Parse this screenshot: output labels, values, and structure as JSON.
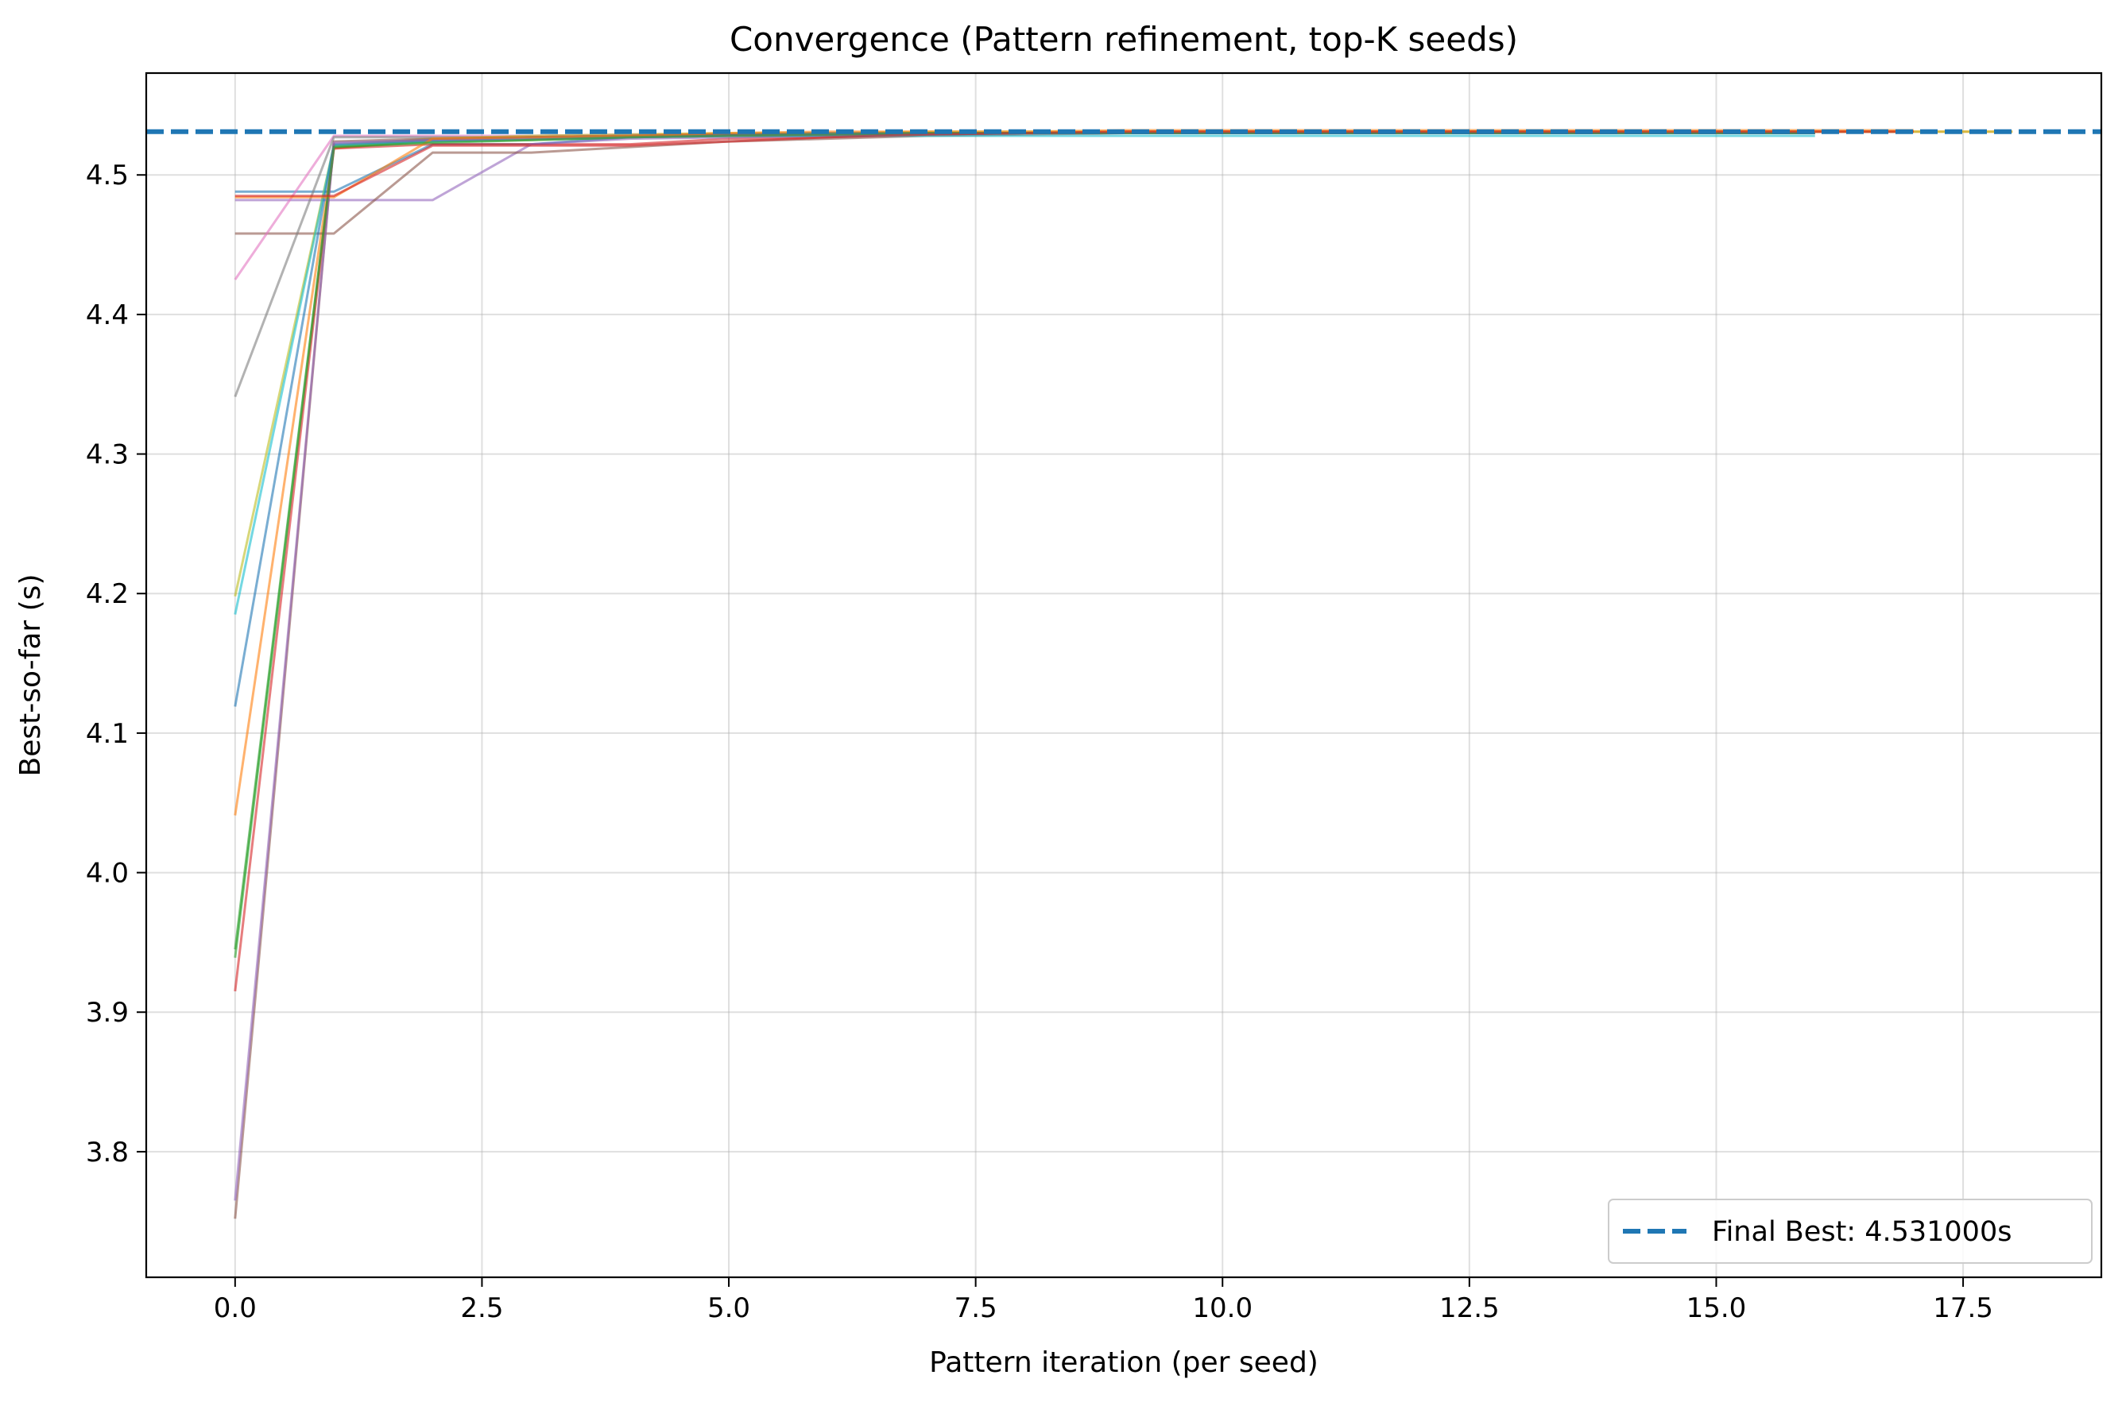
{
  "chart_data": {
    "type": "line",
    "title": "Convergence (Pattern refinement, top-K seeds)",
    "xlabel": "Pattern iteration (per seed)",
    "ylabel": "Best-so-far (s)",
    "xlim": [
      -0.9,
      18.9
    ],
    "ylim": [
      3.71,
      4.573
    ],
    "xticks": [
      0.0,
      2.5,
      5.0,
      7.5,
      10.0,
      12.5,
      15.0,
      17.5
    ],
    "xtick_labels": [
      "0.0",
      "2.5",
      "5.0",
      "7.5",
      "10.0",
      "12.5",
      "15.0",
      "17.5"
    ],
    "yticks": [
      3.8,
      3.9,
      4.0,
      4.1,
      4.2,
      4.3,
      4.4,
      4.5
    ],
    "ytick_labels": [
      "3.8",
      "3.9",
      "4.0",
      "4.1",
      "4.2",
      "4.3",
      "4.4",
      "4.5"
    ],
    "grid": true,
    "legend_placement": "lower-right",
    "reference_line": {
      "label": "Final Best: 4.531000s",
      "y": 4.531,
      "color": "#1f77b4",
      "style": "dashed"
    },
    "series": [
      {
        "color": "#1f77b4",
        "x": [
          0,
          1,
          2,
          3,
          4,
          5,
          6,
          7,
          8,
          9,
          10,
          11,
          12,
          13,
          14,
          15,
          16,
          17
        ],
        "y": [
          4.488,
          4.488,
          4.522,
          4.522,
          4.527,
          4.528,
          4.528,
          4.529,
          4.53,
          4.531,
          4.531,
          4.531,
          4.531,
          4.531,
          4.531,
          4.531,
          4.531,
          4.531
        ]
      },
      {
        "color": "#ff7f0e",
        "x": [
          0,
          1,
          2,
          3,
          4,
          5,
          6,
          7,
          8,
          9,
          10,
          11,
          12,
          13,
          14,
          15,
          16,
          17,
          18
        ],
        "y": [
          4.041,
          4.519,
          4.525,
          4.526,
          4.527,
          4.529,
          4.529,
          4.53,
          4.53,
          4.531,
          4.531,
          4.531,
          4.531,
          4.531,
          4.531,
          4.531,
          4.531,
          4.531,
          4.531
        ]
      },
      {
        "color": "#2ca02c",
        "x": [
          0,
          1,
          2,
          3,
          4,
          5,
          6,
          7,
          8,
          9,
          10,
          11,
          12,
          13,
          14,
          15,
          16
        ],
        "y": [
          3.939,
          4.52,
          4.524,
          4.525,
          4.527,
          4.528,
          4.529,
          4.53,
          4.53,
          4.53,
          4.531,
          4.531,
          4.531,
          4.531,
          4.531,
          4.531,
          4.531
        ]
      },
      {
        "color": "#d62728",
        "x": [
          0,
          1,
          2,
          3,
          4,
          5,
          6,
          7,
          8,
          9,
          10,
          11,
          12,
          13,
          14,
          15,
          16,
          17
        ],
        "y": [
          3.915,
          4.519,
          4.522,
          4.522,
          4.522,
          4.526,
          4.527,
          4.529,
          4.53,
          4.531,
          4.531,
          4.531,
          4.531,
          4.531,
          4.531,
          4.531,
          4.531,
          4.531
        ]
      },
      {
        "color": "#9467bd",
        "x": [
          0,
          1,
          2,
          3,
          4,
          5,
          6,
          7,
          8,
          9,
          10,
          11,
          12,
          13,
          14,
          15,
          16
        ],
        "y": [
          4.482,
          4.482,
          4.482,
          4.522,
          4.526,
          4.527,
          4.528,
          4.529,
          4.53,
          4.53,
          4.53,
          4.53,
          4.53,
          4.53,
          4.53,
          4.53,
          4.53
        ]
      },
      {
        "color": "#8c564b",
        "x": [
          0,
          1,
          2,
          3,
          4,
          5,
          6,
          7,
          8,
          9,
          10,
          11,
          12,
          13,
          14,
          15,
          16
        ],
        "y": [
          4.458,
          4.458,
          4.516,
          4.516,
          4.52,
          4.524,
          4.526,
          4.528,
          4.529,
          4.53,
          4.53,
          4.53,
          4.53,
          4.53,
          4.53,
          4.53,
          4.53
        ]
      },
      {
        "color": "#e377c2",
        "x": [
          0,
          1,
          2,
          3,
          4,
          5,
          6,
          7,
          8,
          9,
          10,
          11,
          12,
          13,
          14,
          15,
          16
        ],
        "y": [
          4.425,
          4.528,
          4.528,
          4.528,
          4.529,
          4.529,
          4.53,
          4.53,
          4.53,
          4.53,
          4.53,
          4.53,
          4.53,
          4.53,
          4.53,
          4.53,
          4.53
        ]
      },
      {
        "color": "#7f7f7f",
        "x": [
          0,
          1,
          2,
          3,
          4,
          5,
          6,
          7,
          8,
          9,
          10,
          11,
          12,
          13,
          14,
          15,
          16
        ],
        "y": [
          4.341,
          4.527,
          4.527,
          4.527,
          4.528,
          4.529,
          4.529,
          4.53,
          4.53,
          4.53,
          4.53,
          4.53,
          4.53,
          4.53,
          4.53,
          4.53,
          4.53
        ]
      },
      {
        "color": "#bcbd22",
        "x": [
          0,
          1,
          2,
          3,
          4,
          5,
          6,
          7,
          8,
          9,
          10,
          11,
          12,
          13,
          14,
          15,
          16,
          17,
          18
        ],
        "y": [
          4.198,
          4.521,
          4.526,
          4.528,
          4.529,
          4.53,
          4.53,
          4.531,
          4.531,
          4.531,
          4.531,
          4.531,
          4.531,
          4.531,
          4.531,
          4.531,
          4.531,
          4.531,
          4.531
        ]
      },
      {
        "color": "#17becf",
        "x": [
          0,
          1,
          2,
          3,
          4,
          5,
          6,
          7,
          8,
          9,
          10,
          11,
          12,
          13,
          14,
          15,
          16
        ],
        "y": [
          4.185,
          4.521,
          4.524,
          4.526,
          4.527,
          4.528,
          4.528,
          4.528,
          4.528,
          4.528,
          4.528,
          4.528,
          4.528,
          4.528,
          4.528,
          4.528,
          4.528
        ]
      },
      {
        "color": "#1f77b4",
        "x": [
          0,
          1,
          2,
          3,
          4,
          5,
          6,
          7,
          8,
          9,
          10,
          11,
          12,
          13,
          14,
          15,
          16
        ],
        "y": [
          4.119,
          4.522,
          4.525,
          4.527,
          4.528,
          4.529,
          4.53,
          4.53,
          4.53,
          4.53,
          4.53,
          4.53,
          4.53,
          4.53,
          4.53,
          4.53,
          4.53
        ]
      },
      {
        "color": "#8c564b",
        "x": [
          0,
          1,
          2,
          3,
          4,
          5,
          6,
          7,
          8,
          9,
          10,
          11,
          12,
          13,
          14,
          15,
          16
        ],
        "y": [
          3.752,
          4.524,
          4.526,
          4.527,
          4.528,
          4.529,
          4.529,
          4.53,
          4.53,
          4.53,
          4.53,
          4.53,
          4.53,
          4.53,
          4.53,
          4.53,
          4.53
        ]
      },
      {
        "color": "#9467bd",
        "x": [
          0,
          1,
          2,
          3,
          4,
          5,
          6,
          7,
          8,
          9,
          10,
          11,
          12,
          13,
          14,
          15,
          16
        ],
        "y": [
          3.765,
          4.523,
          4.525,
          4.526,
          4.527,
          4.528,
          4.529,
          4.53,
          4.53,
          4.53,
          4.53,
          4.53,
          4.53,
          4.53,
          4.53,
          4.53,
          4.53
        ]
      },
      {
        "color": "#ff7f0e",
        "x": [
          0,
          1,
          2,
          3,
          4,
          5,
          6,
          7,
          8,
          9,
          10,
          11,
          12,
          13,
          14,
          15,
          16,
          17
        ],
        "y": [
          4.484,
          4.484,
          4.526,
          4.527,
          4.528,
          4.53,
          4.531,
          4.531,
          4.531,
          4.532,
          4.532,
          4.532,
          4.532,
          4.532,
          4.532,
          4.532,
          4.532,
          4.532
        ]
      },
      {
        "color": "#2ca02c",
        "x": [
          0,
          1,
          2,
          3,
          4,
          5,
          6,
          7,
          8,
          9,
          10,
          11,
          12,
          13,
          14,
          15,
          16
        ],
        "y": [
          3.945,
          4.52,
          4.523,
          4.525,
          4.527,
          4.528,
          4.529,
          4.53,
          4.53,
          4.53,
          4.53,
          4.53,
          4.53,
          4.53,
          4.53,
          4.53,
          4.53
        ]
      },
      {
        "color": "#d62728",
        "x": [
          0,
          1,
          2,
          3,
          4,
          5,
          6,
          7,
          8,
          9,
          10,
          11,
          12,
          13,
          14,
          15,
          16,
          17
        ],
        "y": [
          4.485,
          4.485,
          4.521,
          4.521,
          4.521,
          4.524,
          4.527,
          4.529,
          4.53,
          4.531,
          4.531,
          4.531,
          4.531,
          4.531,
          4.531,
          4.531,
          4.531,
          4.531
        ]
      }
    ]
  }
}
